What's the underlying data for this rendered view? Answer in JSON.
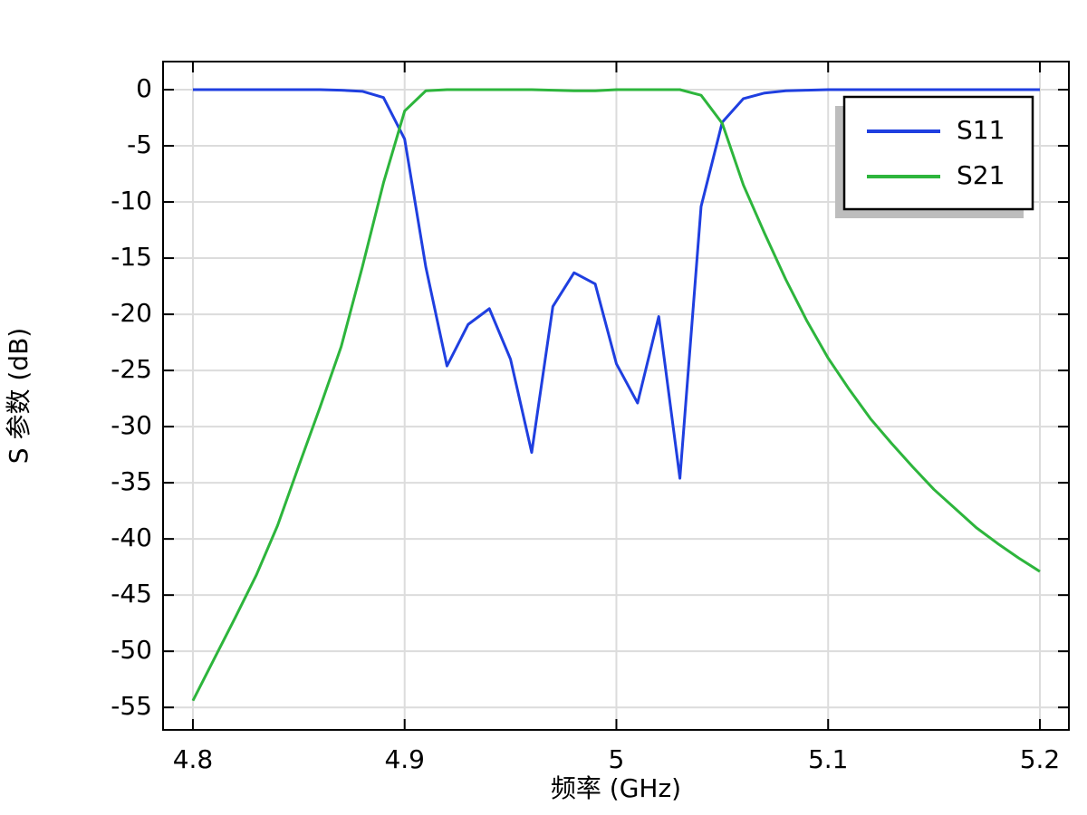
{
  "chart_data": {
    "type": "line",
    "xlabel": "频率 (GHz)",
    "ylabel": "S 参数 (dB)",
    "x": [
      4.8,
      4.81,
      4.82,
      4.83,
      4.84,
      4.85,
      4.86,
      4.87,
      4.88,
      4.89,
      4.9,
      4.91,
      4.92,
      4.93,
      4.94,
      4.95,
      4.96,
      4.97,
      4.98,
      4.99,
      5.0,
      5.01,
      5.02,
      5.03,
      5.04,
      5.05,
      5.06,
      5.07,
      5.08,
      5.09,
      5.1,
      5.11,
      5.12,
      5.13,
      5.14,
      5.15,
      5.16,
      5.17,
      5.18,
      5.19,
      5.2
    ],
    "series": [
      {
        "name": "S11",
        "color": "#1f3fe0",
        "values": [
          0,
          0,
          0,
          0,
          0,
          0,
          0,
          -0.05,
          -0.15,
          -0.7,
          -4.4,
          -15.8,
          -24.6,
          -20.9,
          -19.5,
          -24.0,
          -32.3,
          -19.3,
          -16.3,
          -17.3,
          -24.4,
          -27.9,
          -20.2,
          -34.6,
          -10.4,
          -2.9,
          -0.8,
          -0.3,
          -0.1,
          -0.05,
          0,
          0,
          0,
          0,
          0,
          0,
          0,
          0,
          0,
          0,
          0
        ]
      },
      {
        "name": "S21",
        "color": "#2db53c",
        "values": [
          -54.4,
          -50.7,
          -47.0,
          -43.2,
          -38.8,
          -33.5,
          -28.3,
          -22.9,
          -15.8,
          -8.3,
          -1.9,
          -0.1,
          0,
          0,
          0,
          0,
          0,
          -0.05,
          -0.1,
          -0.1,
          0,
          0,
          0,
          0,
          -0.5,
          -3.0,
          -8.5,
          -12.8,
          -16.9,
          -20.6,
          -23.9,
          -26.7,
          -29.3,
          -31.5,
          -33.6,
          -35.6,
          -37.3,
          -39.0,
          -40.4,
          -41.7,
          -42.9
        ]
      }
    ],
    "xlim": [
      4.7859,
      5.2137
    ],
    "ylim": [
      -57.0,
      2.5
    ],
    "xticks": [
      4.8,
      4.9,
      5,
      5.1,
      5.2
    ],
    "yticks": [
      0,
      -5,
      -10,
      -15,
      -20,
      -25,
      -30,
      -35,
      -40,
      -45,
      -50,
      -55
    ],
    "grid": true,
    "legend": "upper right"
  }
}
